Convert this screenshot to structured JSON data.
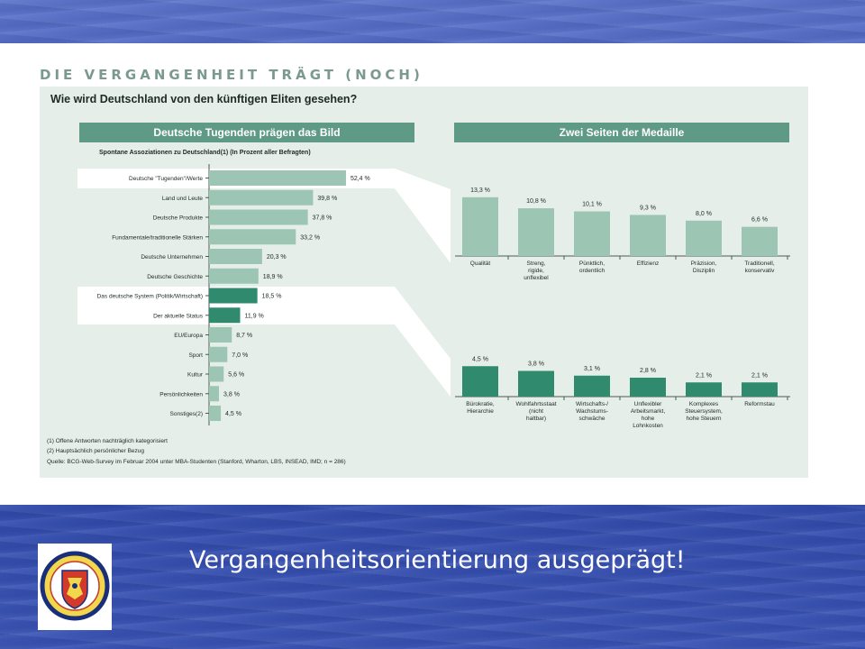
{
  "slide": {
    "headline": "DIE VERGANGENHEIT TRÄGT (NOCH)",
    "question": "Wie wird Deutschland von den künftigen Eliten gesehen?",
    "caption": "Vergangenheitsorientierung ausgeprägt!",
    "footnotes": [
      "(1) Offene Antworten nachträglich kategorisiert",
      "(2) Hauptsächlich persönlicher Bezug",
      "Quelle: BCG-Web-Survey im Februar 2004 unter MBA-Studenten (Stanford, Wharton, LBS, INSEAD, IMD; n = 286)"
    ],
    "logo": {
      "text_top": "CAROLO-WILHELMINA",
      "text_bottom": "BRAUNSCHWEIG"
    },
    "colors": {
      "bar_light": "#9cc5b4",
      "bar_dark": "#2f8a6e",
      "header": "#5f9a86",
      "panel": "#e5eee9"
    }
  },
  "chart_data": [
    {
      "type": "bar",
      "orientation": "horizontal",
      "title": "Deutsche Tugenden prägen das Bild",
      "subtitle": "Spontane Assoziationen zu Deutschland(1) (In Prozent aller Befragten)",
      "categories": [
        "Deutsche \"Tugenden\"/Werte",
        "Land und Leute",
        "Deutsche Produkte",
        "Fundamentale/traditionelle Stärken",
        "Deutsche Unternehmen",
        "Deutsche Geschichte",
        "Das deutsche System (Politik/Wirtschaft)",
        "Der aktuelle Status",
        "EU/Europa",
        "Sport",
        "Kultur",
        "Persönlichkeiten",
        "Sonstiges(2)"
      ],
      "values": [
        52.4,
        39.8,
        37.8,
        33.2,
        20.3,
        18.9,
        18.5,
        11.9,
        8.7,
        7.0,
        5.6,
        3.8,
        4.5
      ],
      "labels": [
        "52,4 %",
        "39,8 %",
        "37,8 %",
        "33,2 %",
        "20,3 %",
        "18,9 %",
        "18,5 %",
        "11,9 %",
        "8,7 %",
        "7,0 %",
        "5,6 %",
        "3,8 %",
        "4,5 %"
      ],
      "highlighted": [
        0,
        6,
        7
      ]
    },
    {
      "type": "bar",
      "title": "Zwei Seiten der Medaille",
      "categories": [
        "Qualität",
        "Streng, rigide, unflexibel",
        "Pünktlich, ordentlich",
        "Effizienz",
        "Präzision, Disziplin",
        "Traditionell, konservativ"
      ],
      "values": [
        13.3,
        10.8,
        10.1,
        9.3,
        8.0,
        6.6
      ],
      "labels": [
        "13,3 %",
        "10,8 %",
        "10,1 %",
        "9,3 %",
        "8,0 %",
        "6,6 %"
      ]
    },
    {
      "type": "bar",
      "categories": [
        "Bürokratie, Hierarchie",
        "Wohlfahrtsstaat (nicht haltbar)",
        "Wirtschafts-/ Wachstums- schwäche",
        "Unflexibler Arbeitsmarkt, hohe Lohnkosten",
        "Komplexes Steuersystem, hohe Steuern",
        "Reformstau"
      ],
      "values": [
        4.5,
        3.8,
        3.1,
        2.8,
        2.1,
        2.1
      ],
      "labels": [
        "4,5 %",
        "3,8 %",
        "3,1 %",
        "2,8 %",
        "2,1 %",
        "2,1 %"
      ]
    }
  ]
}
